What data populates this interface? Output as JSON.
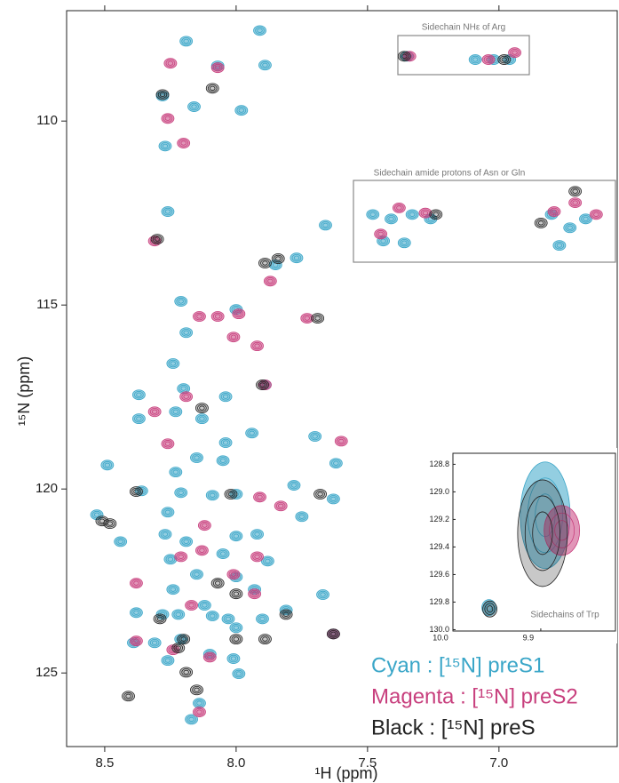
{
  "chart_data": [
    {
      "type": "scatter",
      "x_label": "¹H (ppm)",
      "y_label": "¹⁵N (ppm)",
      "xlim": [
        8.645,
        6.55
      ],
      "ylim": [
        107,
        127
      ],
      "x_reversed": true,
      "y_reversed": true,
      "xticks": [
        8.5,
        {
          "value": 8,
          "label": "8.0"
        },
        7.5,
        {
          "value": 7,
          "label": "7.0"
        }
      ],
      "yticks": [
        110,
        115,
        120,
        125
      ],
      "annotations": [
        "Sidechain NHε of Arg",
        "Sidechain amide protons of Asn or Gln"
      ],
      "legend": "lower right",
      "series": [
        {
          "name": "Cyan : [¹⁵N] preS1",
          "color": "#3aa6c8",
          "x": [
            7.91,
            8.19,
            7.89,
            8.07,
            8.28,
            8.16,
            7.98,
            8.27,
            8.26,
            7.85,
            7.77,
            7.66,
            8.21,
            8.0,
            8.19,
            8.24,
            7.89,
            8.37,
            8.04,
            8.2,
            8.23,
            8.37,
            8.13,
            8.04,
            7.7,
            7.94,
            8.49,
            8.15,
            8.05,
            7.62,
            8.23,
            8.36,
            8.21,
            8.09,
            8.0,
            7.78,
            7.63,
            8.53,
            8.44,
            8.26,
            8.27,
            8.19,
            8.0,
            7.92,
            7.75,
            8.05,
            8.25,
            7.88,
            8.15,
            8.0,
            7.93,
            8.24,
            8.12,
            8.22,
            8.38,
            8.28,
            8.09,
            7.81,
            7.67,
            8.03,
            8.0,
            7.9,
            8.39,
            8.31,
            8.21,
            8.1,
            8.01,
            7.99,
            8.26,
            8.14,
            8.17,
            7.63,
            7.35,
            7.09,
            7.02,
            6.96,
            7.48,
            7.41,
            7.33,
            7.26,
            7.44,
            7.36,
            6.8,
            6.73,
            6.67,
            6.77
          ],
          "y": [
            107.54,
            107.83,
            108.48,
            108.5,
            109.32,
            109.61,
            109.71,
            110.68,
            112.46,
            113.91,
            113.72,
            112.83,
            114.9,
            115.12,
            115.75,
            116.59,
            117.17,
            117.44,
            117.49,
            117.27,
            117.9,
            118.09,
            118.09,
            118.74,
            118.57,
            118.48,
            119.35,
            119.15,
            119.23,
            119.3,
            119.54,
            120.05,
            120.1,
            120.17,
            120.14,
            119.9,
            120.27,
            120.7,
            121.43,
            120.63,
            121.23,
            121.43,
            121.28,
            121.23,
            120.75,
            121.76,
            121.91,
            121.96,
            122.32,
            122.39,
            122.73,
            122.73,
            123.16,
            123.41,
            123.36,
            123.41,
            123.45,
            123.29,
            122.87,
            123.53,
            123.77,
            123.53,
            124.18,
            124.18,
            124.08,
            124.49,
            124.61,
            125.02,
            124.66,
            125.82,
            126.26,
            123.94,
            108.24,
            108.33,
            108.33,
            108.33,
            112.54,
            112.66,
            112.54,
            112.66,
            113.26,
            113.31,
            112.54,
            112.9,
            112.66,
            113.38
          ]
        },
        {
          "name": "Magenta : [¹⁵N] preS2",
          "color": "#c8407e",
          "x": [
            8.25,
            8.07,
            8.26,
            8.2,
            8.31,
            7.87,
            8.14,
            8.07,
            7.99,
            8.01,
            7.92,
            7.73,
            7.89,
            8.19,
            8.31,
            8.26,
            7.6,
            7.91,
            7.83,
            8.12,
            8.13,
            7.92,
            8.21,
            8.01,
            8.38,
            8.17,
            7.93,
            8.38,
            8.24,
            8.1,
            8.14,
            7.63,
            7.34,
            7.04,
            6.94,
            7.45,
            7.38,
            7.28,
            6.79,
            6.71,
            6.63
          ],
          "y": [
            108.43,
            108.55,
            109.93,
            110.6,
            113.26,
            114.35,
            115.31,
            115.31,
            115.24,
            115.87,
            116.11,
            115.36,
            117.17,
            117.49,
            117.9,
            118.77,
            118.7,
            120.22,
            120.46,
            120.99,
            121.67,
            121.84,
            121.84,
            122.32,
            122.56,
            123.16,
            122.85,
            124.13,
            124.37,
            124.57,
            126.06,
            123.94,
            108.24,
            108.33,
            108.14,
            113.07,
            112.36,
            112.5,
            112.46,
            112.22,
            112.54
          ]
        },
        {
          "name": "Black : [¹⁵N] preS",
          "color": "#222222",
          "x": [
            8.28,
            8.09,
            8.3,
            7.89,
            7.84,
            7.69,
            7.9,
            8.13,
            8.51,
            8.48,
            8.38,
            8.2,
            8.19,
            8.41,
            8.15,
            8.0,
            7.89,
            7.63,
            7.81,
            7.36,
            6.98,
            7.24,
            6.71,
            6.84,
            8.02,
            8.29,
            8.22,
            8.0,
            7.68,
            8.07
          ],
          "y": [
            109.28,
            109.11,
            113.21,
            113.86,
            113.74,
            115.36,
            117.17,
            117.8,
            120.87,
            120.94,
            120.07,
            124.08,
            124.98,
            125.63,
            125.46,
            124.08,
            124.08,
            123.94,
            123.41,
            108.24,
            108.33,
            112.54,
            111.91,
            112.77,
            120.14,
            123.53,
            124.32,
            122.85,
            120.14,
            122.56
          ]
        }
      ]
    },
    {
      "type": "scatter",
      "xlim": [
        10.0,
        9.815
      ],
      "ylim": [
        128.72,
        130.01
      ],
      "x_reversed": true,
      "y_reversed": true,
      "xticks": [
        {
          "value": 10,
          "label": "10.0"
        },
        9.9
      ],
      "yticks": [
        128.8,
        {
          "value": 129,
          "label": "129.0"
        },
        129.2,
        129.4,
        129.6,
        129.8,
        {
          "value": 130,
          "label": "130.0"
        }
      ],
      "annotations": [
        "Sidechains of Trp"
      ],
      "series": [
        {
          "color": "#3aa6c8",
          "x": [
            9.895,
            9.959
          ],
          "y": [
            129.17,
            129.84
          ]
        },
        {
          "color": "#c8407e",
          "x": [
            9.876
          ],
          "y": [
            129.28
          ]
        },
        {
          "color": "#222222",
          "x": [
            9.898,
            9.958
          ],
          "y": [
            129.3,
            129.85
          ]
        }
      ]
    }
  ]
}
